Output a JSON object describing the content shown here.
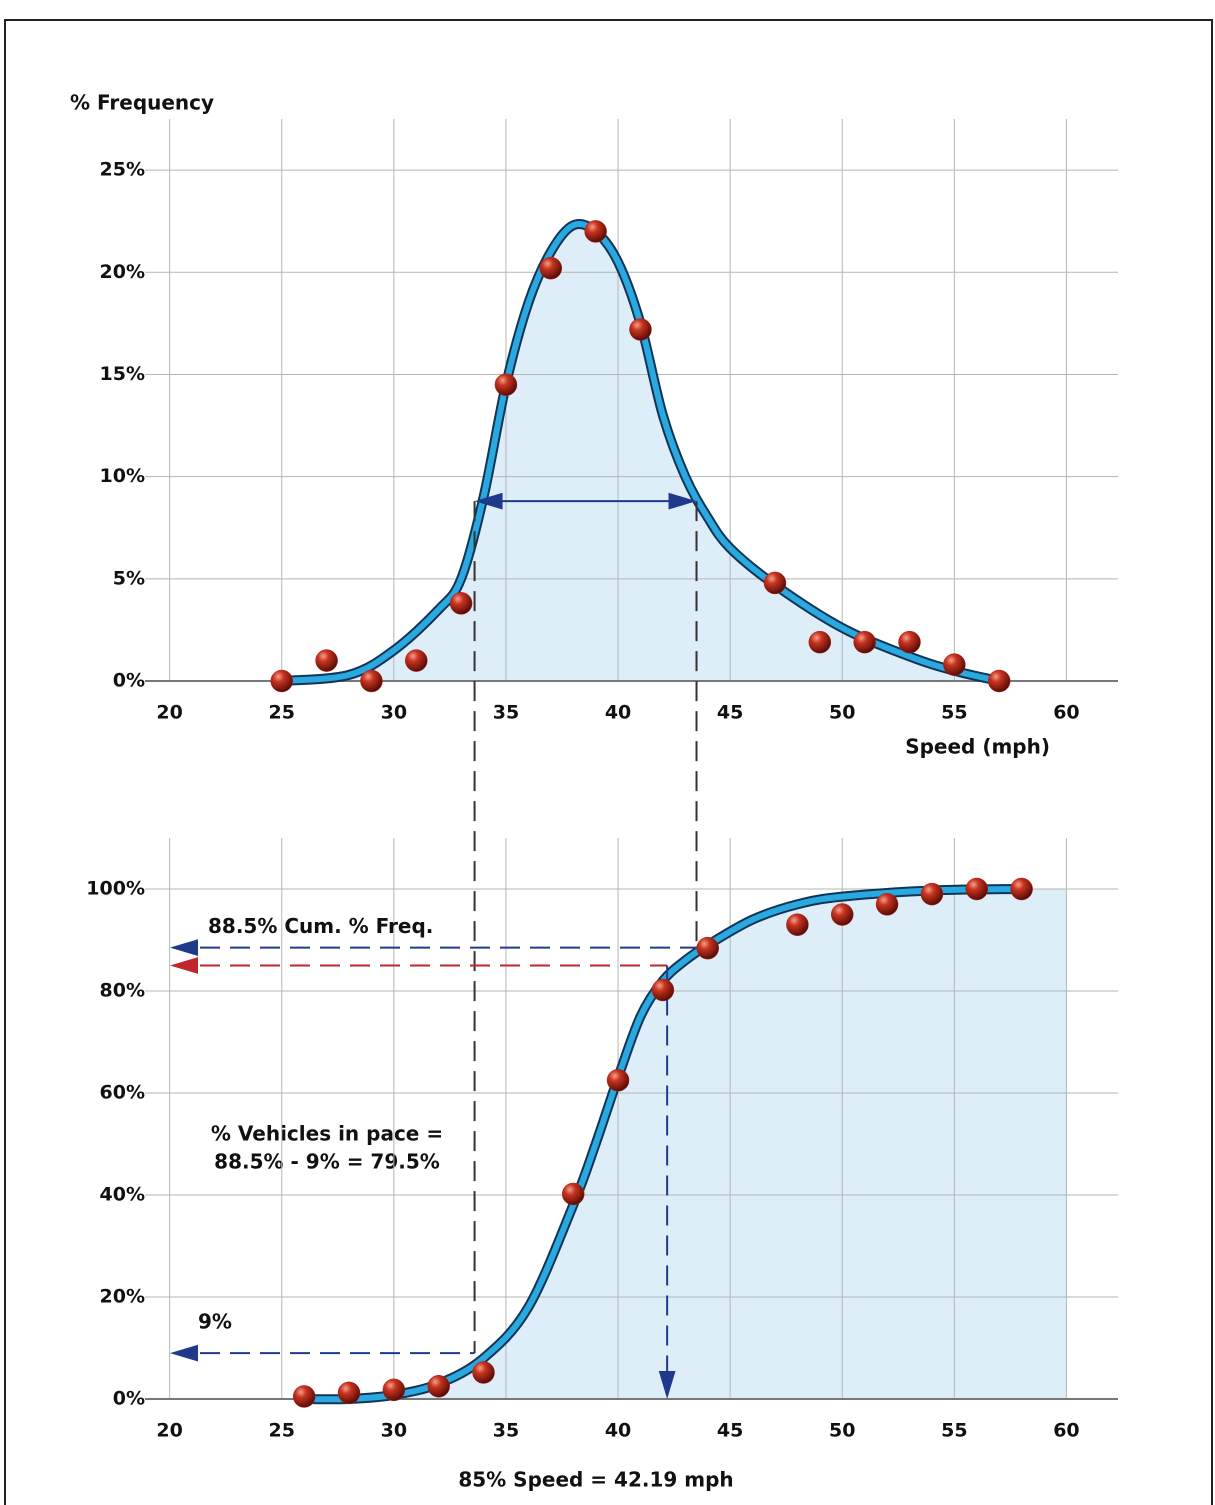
{
  "chart_data": [
    {
      "type": "line",
      "y_label": "% Frequency",
      "x_label": "Speed (mph)",
      "xlim": [
        18.9,
        62.3
      ],
      "xticks": [
        20,
        25,
        30,
        35,
        40,
        45,
        50,
        55,
        60
      ],
      "ylim": [
        0,
        27.5
      ],
      "yticks": [
        {
          "value": 0,
          "label": "0%"
        },
        {
          "value": 5,
          "label": "5%"
        },
        {
          "value": 10,
          "label": "10%"
        },
        {
          "value": 15,
          "label": "15%"
        },
        {
          "value": 20,
          "label": "20%"
        },
        {
          "value": 25,
          "label": "25%"
        }
      ],
      "grid": true,
      "points": {
        "x": [
          25,
          27,
          29,
          31,
          33,
          35,
          37,
          39,
          41,
          47,
          49,
          51,
          53,
          55,
          57
        ],
        "values": [
          0,
          1,
          0,
          1,
          3.8,
          14.5,
          20.2,
          22,
          17.2,
          4.8,
          1.9,
          1.9,
          1.9,
          0.8,
          0
        ],
        "color": "#b3241c"
      },
      "curve": {
        "x": [
          25,
          28,
          30,
          32,
          33,
          34,
          35,
          36,
          37,
          38,
          39,
          40,
          41,
          42,
          43,
          44,
          45,
          47,
          50,
          53,
          55,
          57
        ],
        "values": [
          0,
          0.3,
          1.5,
          3.5,
          5,
          9,
          14.5,
          18.5,
          21,
          22.3,
          22,
          20.5,
          17.5,
          13,
          10,
          8,
          6.5,
          4.7,
          2.6,
          1.2,
          0.5,
          0
        ],
        "color": "#29a9e0"
      },
      "pace_arrow": {
        "x": [
          33.6,
          43.5
        ],
        "y": 8.8
      }
    },
    {
      "type": "line",
      "xlim": [
        18.9,
        62.3
      ],
      "xticks": [
        20,
        25,
        30,
        35,
        40,
        45,
        50,
        55,
        60
      ],
      "ylim": [
        0,
        110
      ],
      "yticks": [
        {
          "value": 0,
          "label": "0%"
        },
        {
          "value": 20,
          "label": "20%"
        },
        {
          "value": 40,
          "label": "40%"
        },
        {
          "value": 60,
          "label": "60%"
        },
        {
          "value": 80,
          "label": "80%"
        },
        {
          "value": 100,
          "label": "100%"
        }
      ],
      "grid": true,
      "points": {
        "x": [
          26,
          28,
          30,
          32,
          34,
          38,
          40,
          42,
          44,
          48,
          50,
          52,
          54,
          56,
          58
        ],
        "values": [
          0.5,
          1.2,
          1.8,
          2.5,
          5.2,
          40.2,
          62.5,
          80.2,
          88.4,
          93,
          95,
          97,
          99,
          100,
          100
        ],
        "color": "#b3241c"
      },
      "curve": {
        "x": [
          26,
          28,
          30,
          32,
          34,
          36,
          38,
          39,
          40,
          41,
          42,
          43,
          44,
          46,
          48,
          50,
          54,
          58
        ],
        "values": [
          0,
          0,
          0.8,
          3,
          8,
          18,
          38,
          50,
          63,
          75,
          82,
          86,
          89,
          94,
          97,
          98.5,
          99.7,
          100
        ],
        "color": "#29a9e0"
      },
      "ref_lines": [
        {
          "y": 88.5,
          "x": 43.5,
          "color": "#1f3a8a",
          "label": "88.5% Cum. % Freq."
        },
        {
          "y": 85,
          "x": 42.19,
          "color": "#c0272d"
        },
        {
          "y": 9,
          "x": 33.6,
          "color": "#1f3a8a",
          "label": "9%"
        }
      ],
      "speed85": {
        "x": 42.19,
        "label": "85% Speed = 42.19 mph"
      },
      "pace_text": [
        "% Vehicles in pace =",
        "88.5% - 9% = 79.5%"
      ]
    }
  ]
}
